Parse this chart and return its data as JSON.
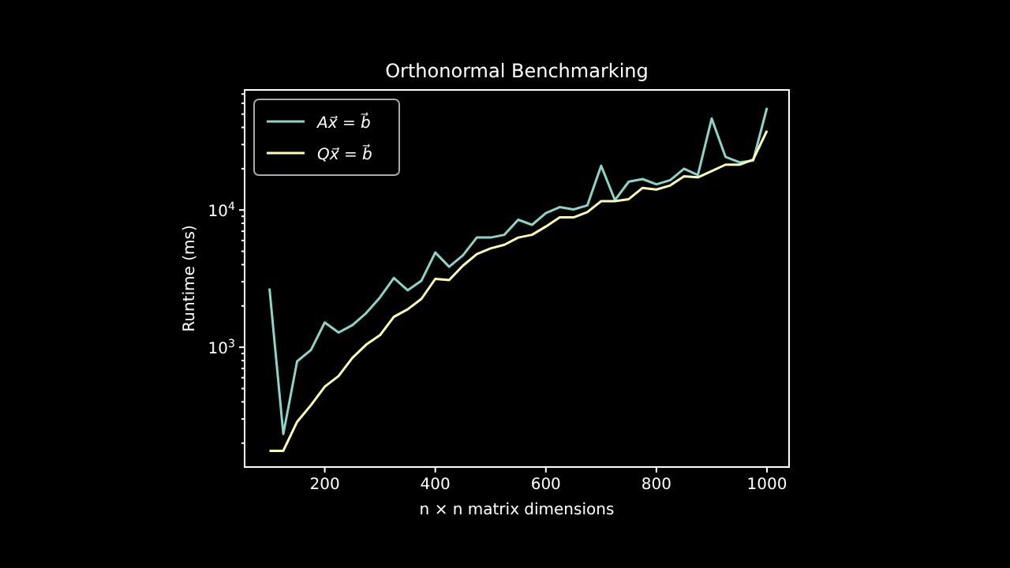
{
  "chart_data": {
    "type": "line",
    "title": "Orthonormal Benchmarking",
    "xlabel": "n × n matrix dimensions",
    "ylabel": "Runtime (ms)",
    "x": [
      100,
      125,
      150,
      175,
      200,
      225,
      250,
      275,
      300,
      325,
      350,
      375,
      400,
      425,
      450,
      475,
      500,
      525,
      550,
      575,
      600,
      625,
      650,
      675,
      700,
      725,
      750,
      775,
      800,
      825,
      850,
      875,
      900,
      925,
      950,
      975,
      1000
    ],
    "series": [
      {
        "name": "Ax⃗ = b⃗",
        "color": "#8dd3c7",
        "values": [
          2680,
          233,
          790,
          955,
          1515,
          1280,
          1450,
          1775,
          2310,
          3200,
          2600,
          3060,
          4900,
          3860,
          4680,
          6300,
          6300,
          6600,
          8500,
          7800,
          9500,
          10500,
          10100,
          10800,
          21000,
          11800,
          16100,
          16800,
          15400,
          16500,
          20000,
          18000,
          46400,
          24400,
          22300,
          22900,
          55500
        ]
      },
      {
        "name": "Qx⃗ = b⃗",
        "color": "#feffb3",
        "values": [
          176,
          176,
          286,
          378,
          516,
          617,
          837,
          1045,
          1225,
          1667,
          1890,
          2255,
          3150,
          3090,
          3930,
          4770,
          5250,
          5580,
          6300,
          6600,
          7580,
          8830,
          8830,
          9660,
          11600,
          11600,
          12000,
          14500,
          14100,
          15100,
          17600,
          17300,
          19200,
          21400,
          21400,
          23300,
          37800
        ]
      }
    ],
    "xlim": [
      55,
      1040
    ],
    "xticks": [
      200,
      400,
      600,
      800,
      1000
    ],
    "ylim": [
      134,
      75000
    ],
    "yticks": [
      {
        "value": 200,
        "label": null
      },
      {
        "value": 300,
        "label": null
      },
      {
        "value": 400,
        "label": null
      },
      {
        "value": 500,
        "label": null
      },
      {
        "value": 600,
        "label": null
      },
      {
        "value": 700,
        "label": null
      },
      {
        "value": 800,
        "label": null
      },
      {
        "value": 900,
        "label": null
      },
      {
        "value": 1000,
        "label": "10$^{3}$"
      },
      {
        "value": 2000,
        "label": null
      },
      {
        "value": 3000,
        "label": null
      },
      {
        "value": 4000,
        "label": null
      },
      {
        "value": 5000,
        "label": null
      },
      {
        "value": 6000,
        "label": null
      },
      {
        "value": 7000,
        "label": null
      },
      {
        "value": 8000,
        "label": null
      },
      {
        "value": 9000,
        "label": null
      },
      {
        "value": 10000,
        "label": "10$^{4}$"
      },
      {
        "value": 20000,
        "label": null
      },
      {
        "value": 30000,
        "label": null
      },
      {
        "value": 40000,
        "label": null
      },
      {
        "value": 50000,
        "label": null
      },
      {
        "value": 60000,
        "label": null
      },
      {
        "value": 70000,
        "label": null
      }
    ],
    "log": "y",
    "grid": false,
    "legend": "top left",
    "marker": "none",
    "line_style": "solid"
  }
}
